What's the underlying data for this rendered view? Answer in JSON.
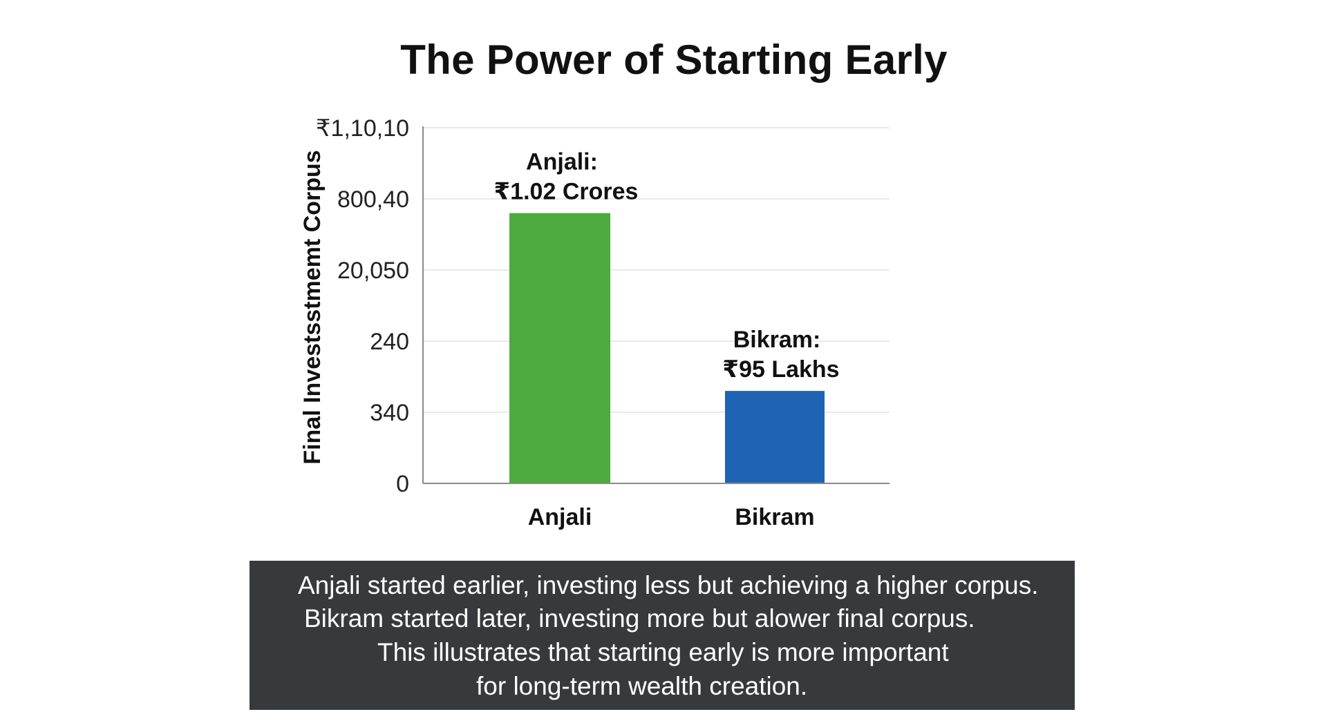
{
  "chart_data": {
    "type": "bar",
    "title": "The Power of Starting Early",
    "ylabel": "Final Investsstmemt Corpus",
    "xlabel": "",
    "ytick_labels": [
      "0",
      "340",
      "240",
      "20,050",
      "800,40",
      "₹1,10,10"
    ],
    "categories": [
      "Anjali",
      "Bikram"
    ],
    "values": [
      1.02,
      0.95
    ],
    "data_labels": [
      [
        "Anjali:",
        "₹1.02 Crores"
      ],
      [
        "Bikram:",
        "₹95 Lakhs"
      ]
    ],
    "ylim": [
      0,
      5
    ],
    "bar_level_ticks": [
      3.8,
      1.3
    ],
    "grid": true,
    "legend": "none"
  },
  "colors": {
    "bars": [
      "#4caa3e",
      "#1f63b4"
    ],
    "grid": "#e2e2e2",
    "axis": "#8a8a8a",
    "caption_bg": "#363a3d"
  },
  "caption": {
    "lines": [
      "Anjali started earlier, investing less but achieving a higher corpus.",
      "Bikram started later, investing more but alower final corpus.",
      "This illustrates that starting early is more important",
      "for long-term wealth creation."
    ]
  }
}
